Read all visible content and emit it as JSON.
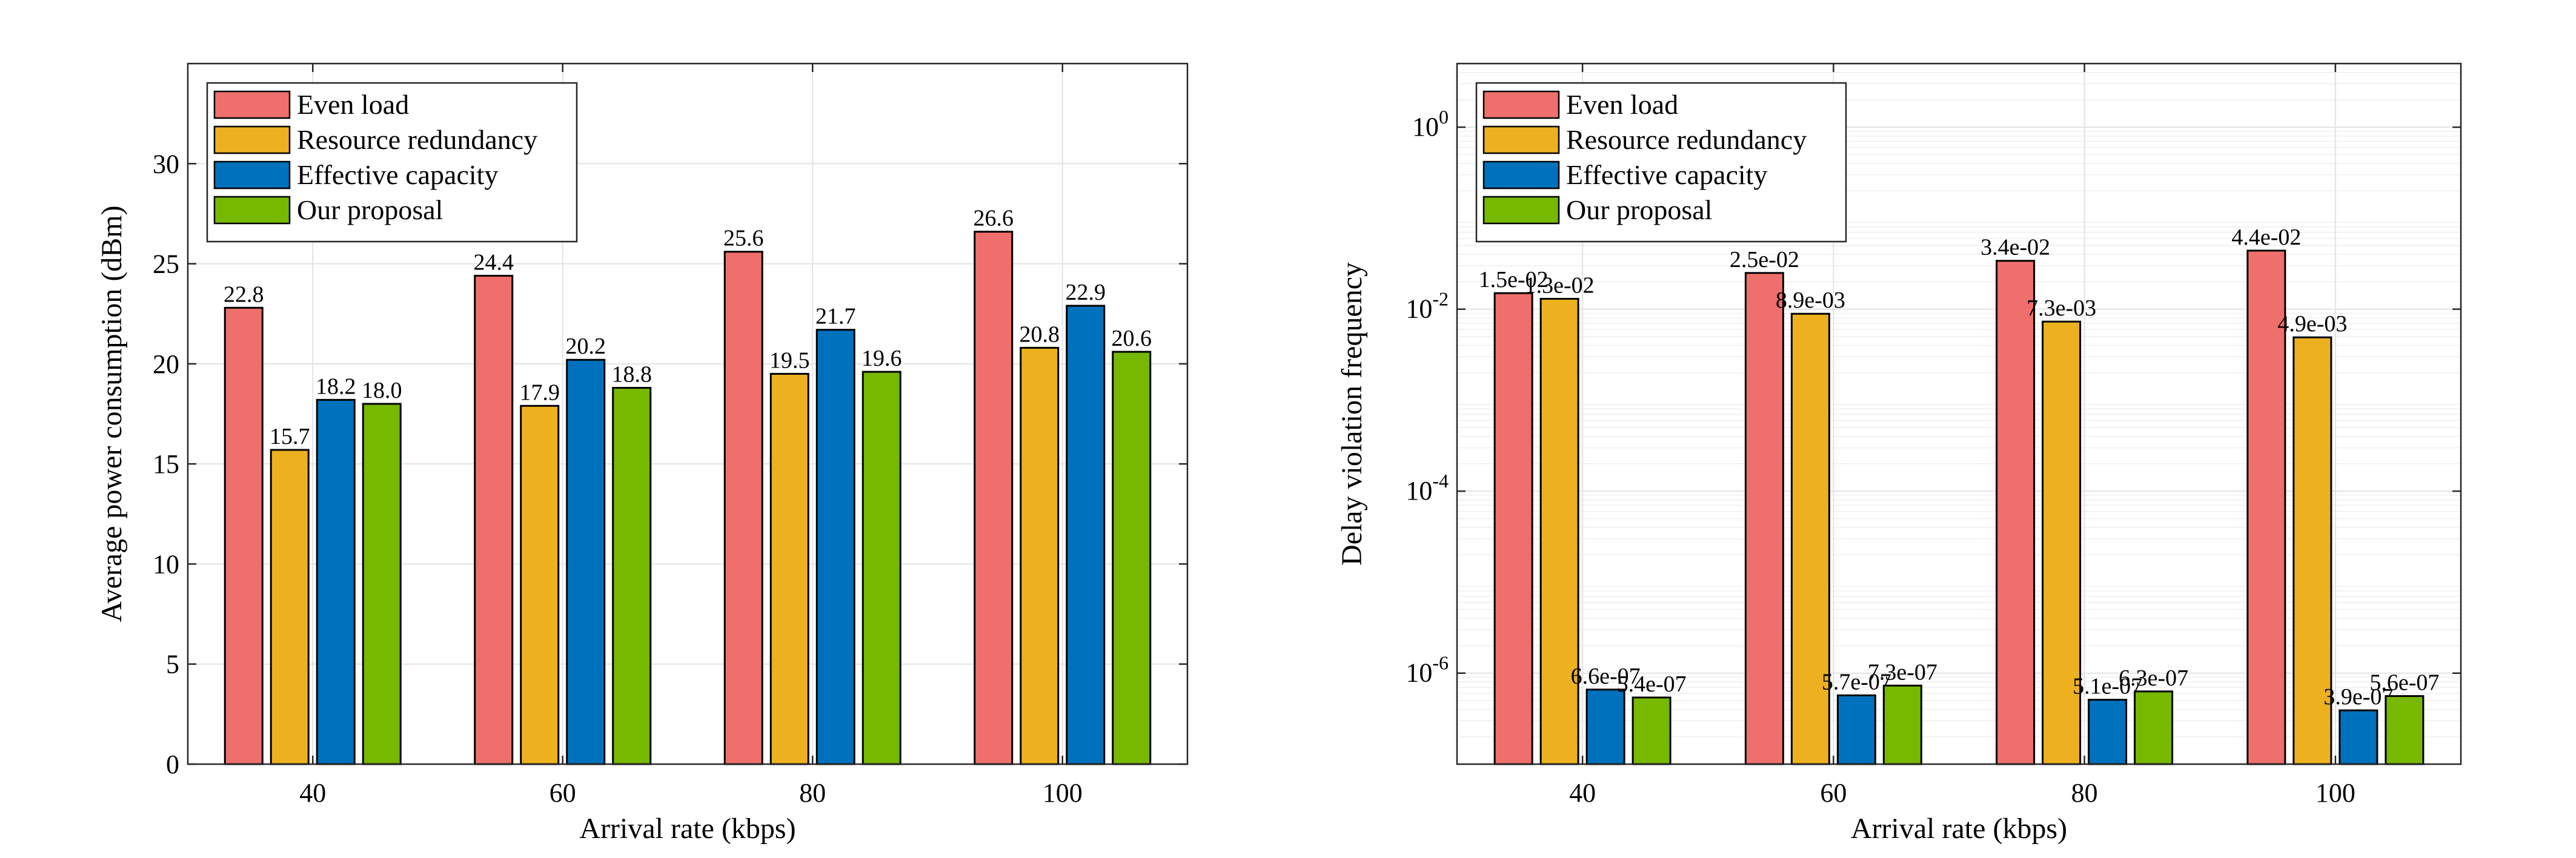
{
  "colors": {
    "even_load": "#EF6F6C",
    "resource_redundancy": "#EDB120",
    "effective_capacity": "#0072BD",
    "our_proposal": "#77B800"
  },
  "chart_data": [
    {
      "type": "bar",
      "title": "",
      "xlabel": "Arrival rate (kbps)",
      "ylabel": "Average power consumption (dBm)",
      "categories": [
        "40",
        "60",
        "80",
        "100"
      ],
      "ylim": [
        0,
        35
      ],
      "yticks": [
        0,
        5,
        10,
        15,
        20,
        25,
        30
      ],
      "ytick_labels": [
        "0",
        "5",
        "10",
        "15",
        "20",
        "25",
        "30"
      ],
      "grid": true,
      "legend_position": "top-left",
      "series": [
        {
          "name": "Even load",
          "values": [
            22.8,
            24.4,
            25.6,
            26.6
          ],
          "labels": [
            "22.8",
            "24.4",
            "25.6",
            "26.6"
          ]
        },
        {
          "name": "Resource redundancy",
          "values": [
            15.7,
            17.9,
            19.5,
            20.8
          ],
          "labels": [
            "15.7",
            "17.9",
            "19.5",
            "20.8"
          ]
        },
        {
          "name": "Effective capacity",
          "values": [
            18.2,
            20.2,
            21.7,
            22.9
          ],
          "labels": [
            "18.2",
            "20.2",
            "21.7",
            "22.9"
          ]
        },
        {
          "name": "Our proposal",
          "values": [
            18.0,
            18.8,
            19.6,
            20.6
          ],
          "labels": [
            "18.0",
            "18.8",
            "19.6",
            "20.6"
          ]
        }
      ]
    },
    {
      "type": "bar",
      "title": "",
      "xlabel": "Arrival rate (kbps)",
      "ylabel": "Delay violation frequency",
      "categories": [
        "40",
        "60",
        "80",
        "100"
      ],
      "yscale": "log",
      "ylim": [
        1e-07,
        5
      ],
      "yticks": [
        1e-06,
        0.0001,
        0.01,
        1
      ],
      "ytick_labels": [
        {
          "base": "10",
          "exp": "-6"
        },
        {
          "base": "10",
          "exp": "-4"
        },
        {
          "base": "10",
          "exp": "-2"
        },
        {
          "base": "10",
          "exp": "0"
        }
      ],
      "grid": true,
      "legend_position": "top-left",
      "series": [
        {
          "name": "Even load",
          "values": [
            0.015,
            0.025,
            0.034,
            0.044
          ],
          "labels": [
            "1.5e-02",
            "2.5e-02",
            "3.4e-02",
            "4.4e-02"
          ]
        },
        {
          "name": "Resource redundancy",
          "values": [
            0.013,
            0.0089,
            0.0073,
            0.0049
          ],
          "labels": [
            "1.3e-02",
            "8.9e-03",
            "7.3e-03",
            "4.9e-03"
          ]
        },
        {
          "name": "Effective capacity",
          "values": [
            6.6e-07,
            5.7e-07,
            5.1e-07,
            3.9e-07
          ],
          "labels": [
            "6.6e-07",
            "5.7e-07",
            "5.1e-07",
            "3.9e-07"
          ]
        },
        {
          "name": "Our proposal",
          "values": [
            5.4e-07,
            7.3e-07,
            6.3e-07,
            5.6e-07
          ],
          "labels": [
            "5.4e-07",
            "7.3e-07",
            "6.3e-07",
            "5.6e-07"
          ]
        }
      ]
    }
  ]
}
